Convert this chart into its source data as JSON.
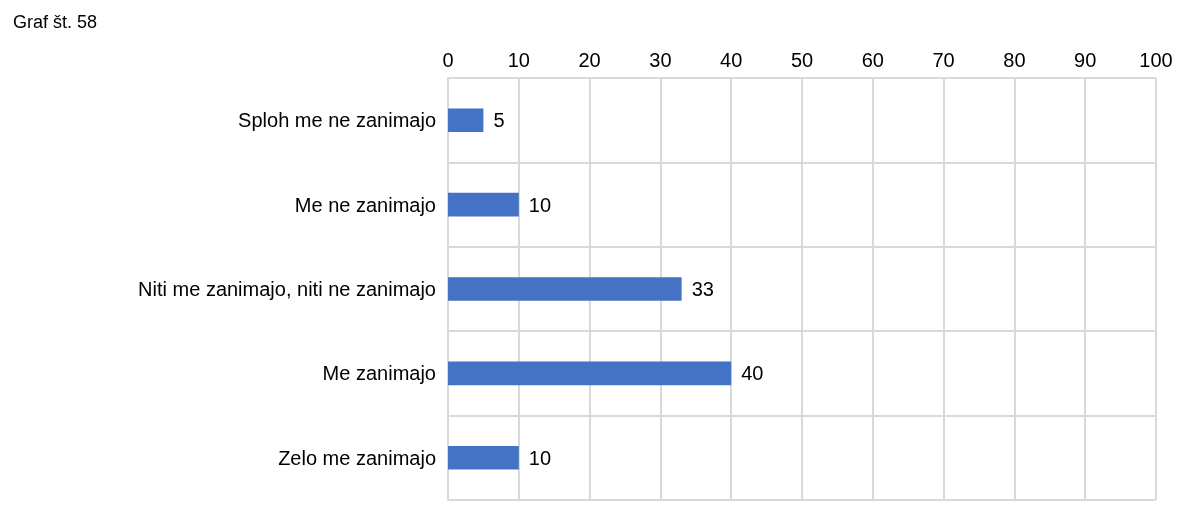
{
  "chart_data": {
    "type": "bar",
    "orientation": "horizontal",
    "title": "Graf št. 58",
    "categories": [
      "Sploh me ne zanimajo",
      "Me ne zanimajo",
      "Niti me zanimajo, niti ne zanimajo",
      "Me zanimajo",
      "Zelo me zanimajo"
    ],
    "values": [
      5,
      10,
      33,
      40,
      10
    ],
    "color": "#4472c4",
    "data_labels": true,
    "xlim": [
      0,
      100
    ],
    "xticks": [
      0,
      10,
      20,
      30,
      40,
      50,
      60,
      70,
      80,
      90,
      100
    ],
    "grid": true
  }
}
